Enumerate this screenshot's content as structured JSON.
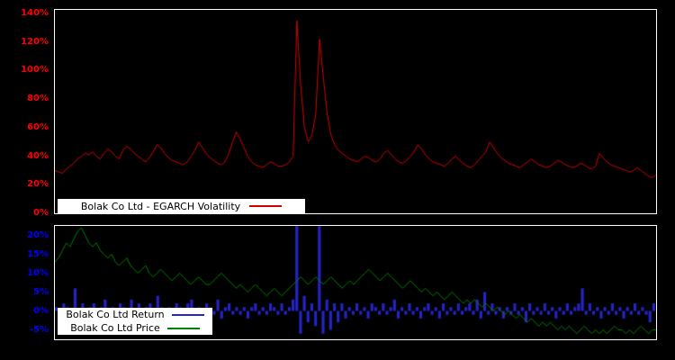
{
  "page": {
    "background": "#000000"
  },
  "chart_data": [
    {
      "id": "volatility",
      "type": "line",
      "legend": "Bolak Co Ltd - EGARCH Volatility",
      "color": "#d40000",
      "tick_color": "#ff0000",
      "ylim": [
        0,
        142.5
      ],
      "ytick_values": [
        0,
        20,
        40,
        60,
        80,
        100,
        120,
        140
      ],
      "ytick_labels": [
        "0%",
        "20%",
        "40%",
        "60%",
        "80%",
        "100%",
        "120%",
        "140%"
      ],
      "values": [
        30,
        29,
        28,
        31,
        33,
        35,
        38,
        40,
        42,
        41,
        43,
        40,
        38,
        42,
        45,
        43,
        40,
        38,
        44,
        47,
        45,
        42,
        40,
        38,
        36,
        39,
        43,
        48,
        46,
        42,
        39,
        37,
        36,
        35,
        34,
        36,
        40,
        44,
        50,
        46,
        42,
        39,
        37,
        35,
        34,
        36,
        42,
        50,
        57,
        52,
        46,
        40,
        36,
        34,
        33,
        32,
        34,
        36,
        35,
        33,
        33,
        34,
        36,
        40,
        135,
        90,
        60,
        50,
        55,
        70,
        122,
        95,
        70,
        55,
        48,
        44,
        42,
        40,
        38,
        37,
        36,
        38,
        40,
        39,
        37,
        36,
        38,
        42,
        44,
        41,
        38,
        36,
        35,
        37,
        40,
        43,
        48,
        45,
        41,
        38,
        36,
        35,
        34,
        33,
        35,
        38,
        40,
        37,
        35,
        33,
        32,
        34,
        37,
        40,
        43,
        50,
        46,
        42,
        39,
        37,
        35,
        34,
        33,
        32,
        34,
        36,
        38,
        36,
        34,
        33,
        32,
        33,
        35,
        37,
        36,
        34,
        33,
        32,
        33,
        35,
        34,
        32,
        31,
        33,
        42,
        39,
        36,
        34,
        33,
        32,
        31,
        30,
        29,
        30,
        32,
        30,
        28,
        26,
        25,
        27
      ]
    },
    {
      "id": "return-price",
      "ylim": [
        -7.5,
        22.5
      ],
      "tick_color": "#0000ff",
      "ytick_values": [
        -5,
        0,
        5,
        10,
        15,
        20
      ],
      "ytick_labels": [
        "-5%",
        "0%",
        "5%",
        "10%",
        "15%",
        "20%"
      ],
      "series": [
        {
          "name": "Bolak Co Ltd Return",
          "type": "bar",
          "color": "#2424c8",
          "values": [
            1,
            -1,
            2,
            1,
            -2,
            6,
            -1,
            2,
            -1,
            1,
            2,
            -1,
            1,
            3,
            -2,
            1,
            -1,
            2,
            1,
            -1,
            3,
            -1,
            2,
            -2,
            1,
            2,
            -1,
            4,
            1,
            -2,
            1,
            -1,
            2,
            1,
            -1,
            2,
            3,
            -1,
            1,
            -2,
            2,
            1,
            -1,
            3,
            -2,
            1,
            2,
            -1,
            1,
            -1,
            1,
            -2,
            1,
            2,
            -1,
            1,
            -1,
            2,
            1,
            -1,
            2,
            -1,
            1,
            3,
            25,
            -6,
            4,
            -3,
            2,
            -4,
            25,
            -6,
            3,
            -5,
            2,
            -3,
            2,
            -2,
            1,
            -1,
            2,
            -1,
            1,
            -2,
            2,
            1,
            -1,
            2,
            -1,
            1,
            3,
            -2,
            1,
            -1,
            2,
            -1,
            1,
            -2,
            1,
            2,
            -1,
            1,
            -2,
            2,
            -1,
            1,
            -1,
            2,
            -1,
            1,
            2,
            -1,
            3,
            -2,
            5,
            -1,
            2,
            -1,
            1,
            -2,
            1,
            -1,
            2,
            -1,
            1,
            -3,
            2,
            -1,
            1,
            -1,
            2,
            -1,
            1,
            -2,
            1,
            -1,
            2,
            -1,
            1,
            2,
            6,
            -1,
            2,
            -1,
            1,
            -2,
            1,
            -1,
            2,
            -1,
            1,
            -2,
            1,
            -1,
            2,
            -1,
            1,
            -1,
            -3,
            2
          ]
        },
        {
          "name": "Bolak Co Ltd Price",
          "type": "line",
          "color": "#008000",
          "values": [
            13,
            14,
            16,
            18,
            17,
            19,
            21,
            22,
            20,
            18,
            17,
            18,
            16,
            15,
            14,
            15,
            13,
            12,
            13,
            14,
            12,
            11,
            10,
            11,
            12,
            10,
            9,
            10,
            11,
            10,
            9,
            8,
            9,
            10,
            9,
            8,
            7,
            8,
            9,
            8,
            7,
            7,
            8,
            9,
            10,
            9,
            8,
            7,
            6,
            7,
            6,
            5,
            6,
            7,
            6,
            5,
            4,
            5,
            6,
            5,
            4,
            5,
            6,
            7,
            8,
            9,
            8,
            7,
            8,
            9,
            8,
            7,
            8,
            9,
            8,
            7,
            6,
            7,
            8,
            7,
            8,
            9,
            10,
            11,
            10,
            9,
            8,
            9,
            10,
            9,
            8,
            7,
            6,
            7,
            8,
            7,
            6,
            5,
            6,
            5,
            4,
            5,
            4,
            3,
            4,
            5,
            4,
            3,
            2,
            3,
            2,
            3,
            2,
            1,
            2,
            1,
            0,
            1,
            0,
            -1,
            0,
            -1,
            -2,
            -1,
            -2,
            -3,
            -2,
            -3,
            -4,
            -3,
            -4,
            -3,
            -4,
            -5,
            -4,
            -5,
            -4,
            -5,
            -6,
            -5,
            -4,
            -5,
            -6,
            -5,
            -6,
            -5,
            -6,
            -5,
            -4,
            -5,
            -5,
            -6,
            -5,
            -6,
            -5,
            -4,
            -5,
            -6,
            -5,
            -5
          ]
        }
      ]
    }
  ]
}
